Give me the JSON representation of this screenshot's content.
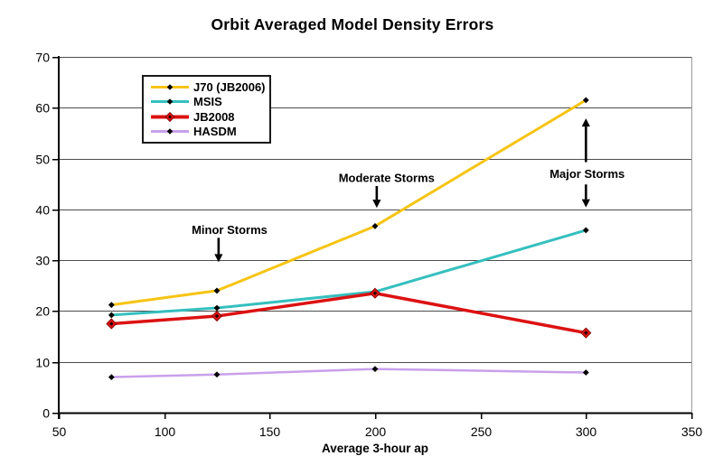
{
  "page": {
    "background": "#ffffff"
  },
  "chart_data": {
    "type": "line",
    "title": "Orbit Averaged Model Density Errors",
    "xlabel": "Average 3-hour ap",
    "ylabel": "",
    "xlim": [
      50,
      350
    ],
    "ylim": [
      0,
      70
    ],
    "x_ticks": [
      50,
      100,
      150,
      200,
      250,
      300,
      350
    ],
    "y_ticks": [
      0,
      10,
      20,
      30,
      40,
      50,
      60,
      70
    ],
    "grid": "horizontal-only",
    "legend_position": "inside-upper-left",
    "x": [
      75,
      125,
      200,
      300
    ],
    "series": [
      {
        "name": "J70 (JB2006)",
        "color": "#F6C414",
        "marker": "black-diamond-small",
        "line_width": 3,
        "values": [
          21.2,
          24,
          36.7,
          61.5
        ]
      },
      {
        "name": "MSIS",
        "color": "#35BFBF",
        "marker": "black-diamond-small",
        "line_width": 3,
        "values": [
          19.2,
          20.6,
          23.8,
          35.9
        ]
      },
      {
        "name": "JB2008",
        "color": "#DC1212",
        "marker": "red-diamond-large",
        "line_width": 3.5,
        "values": [
          17.5,
          19,
          23.5,
          15.7
        ]
      },
      {
        "name": "HASDM",
        "color": "#C9A0EC",
        "marker": "black-diamond-small",
        "line_width": 2.5,
        "values": [
          7,
          7.5,
          8.6,
          7.9
        ]
      }
    ],
    "annotations": [
      {
        "text": "Minor Storms",
        "text_x": 131,
        "text_y": 36,
        "arrows": [
          {
            "x": 125.8,
            "from_y": 34.4,
            "to_y": 29.6
          }
        ]
      },
      {
        "text": "Moderate Storms",
        "text_x": 205.5,
        "text_y": 46.2,
        "arrows": [
          {
            "x": 200.8,
            "from_y": 44.6,
            "to_y": 40.3
          }
        ]
      },
      {
        "text": "Major Storms",
        "text_x": 300.6,
        "text_y": 47.0,
        "arrows": [
          {
            "x": 300,
            "from_y": 49.3,
            "to_y": 57.9
          },
          {
            "x": 300,
            "from_y": 44.9,
            "to_y": 40.4
          }
        ]
      }
    ],
    "colors": {
      "axis": "#000000",
      "gridline": "#4d4d4d",
      "plot_border_right": "#9a9a9a",
      "annotation": "#000000",
      "tick_label": "#000000"
    }
  }
}
